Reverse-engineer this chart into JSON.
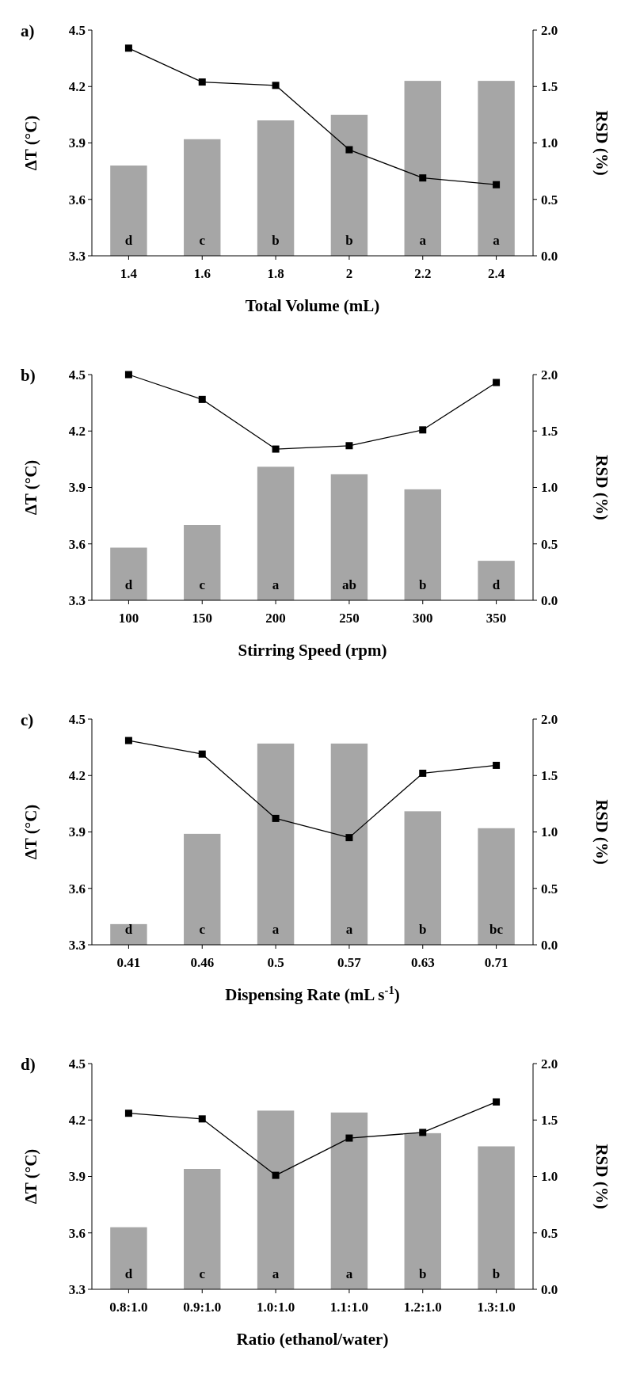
{
  "chart_data": [
    {
      "type": "bar",
      "title": "a)",
      "xlabel": "Total Volume (mL)",
      "ylabel": "ΔT (°C)",
      "y2label": "RSD (%)",
      "categories": [
        "1.4",
        "1.6",
        "1.8",
        "2",
        "2.2",
        "2.4"
      ],
      "y2ticks": [
        {
          "value": 0,
          "label": "0.0"
        },
        {
          "value": 0.5,
          "label": "0.5"
        },
        {
          "value": 1,
          "label": "1.0"
        },
        {
          "value": 1.5,
          "label": "1.5"
        },
        {
          "value": 2,
          "label": "2.0"
        }
      ],
      "series": [
        {
          "color": "#a6a6a6",
          "values": [
            3.78,
            3.92,
            4.02,
            4.05,
            4.23,
            4.23
          ]
        },
        {
          "type": "line",
          "axis": "y2",
          "color": "#000000",
          "marker": "square",
          "values": [
            1.84,
            1.54,
            1.51,
            0.94,
            0.69,
            0.63
          ]
        }
      ],
      "ylim": [
        3.3,
        4.5
      ],
      "yticks": [
        3.3,
        3.6,
        3.9,
        4.2,
        4.5
      ],
      "y2lim": [
        0,
        2
      ],
      "annotations": [
        "d",
        "c",
        "b",
        "b",
        "a",
        "a"
      ]
    },
    {
      "type": "bar",
      "title": "b)",
      "xlabel": "Stirring Speed (rpm)",
      "ylabel": "ΔT (°C)",
      "y2label": "RSD (%)",
      "categories": [
        "100",
        "150",
        "200",
        "250",
        "300",
        "350"
      ],
      "y2ticks": [
        {
          "value": 0,
          "label": "0.0"
        },
        {
          "value": 0.5,
          "label": "0.5"
        },
        {
          "value": 1,
          "label": "1.0"
        },
        {
          "value": 1.5,
          "label": "1.5"
        },
        {
          "value": 2,
          "label": "2.0"
        }
      ],
      "series": [
        {
          "color": "#a6a6a6",
          "values": [
            3.58,
            3.7,
            4.01,
            3.97,
            3.89,
            3.51
          ]
        },
        {
          "type": "line",
          "axis": "y2",
          "color": "#000000",
          "marker": "square",
          "values": [
            2.0,
            1.78,
            1.34,
            1.37,
            1.51,
            1.93
          ]
        }
      ],
      "ylim": [
        3.3,
        4.5
      ],
      "yticks": [
        3.3,
        3.6,
        3.9,
        4.2,
        4.5
      ],
      "y2lim": [
        0,
        2
      ],
      "annotations": [
        "d",
        "c",
        "a",
        "ab",
        "b",
        "d"
      ]
    },
    {
      "type": "bar",
      "title": "c)",
      "xlabel": "Dispensing Rate (mL s$^{-1}$)",
      "ylabel": "ΔT (°C)",
      "y2label": "RSD (%)",
      "categories": [
        "0.41",
        "0.46",
        "0.5",
        "0.57",
        "0.63",
        "0.71"
      ],
      "y2ticks": [
        {
          "value": 0,
          "label": "0.0"
        },
        {
          "value": 0.5,
          "label": "0.5"
        },
        {
          "value": 1,
          "label": "1.0"
        },
        {
          "value": 1.5,
          "label": "1.5"
        },
        {
          "value": 2,
          "label": "2.0"
        }
      ],
      "series": [
        {
          "color": "#a6a6a6",
          "values": [
            3.41,
            3.89,
            4.37,
            4.37,
            4.01,
            3.92
          ]
        },
        {
          "type": "line",
          "axis": "y2",
          "color": "#000000",
          "marker": "square",
          "values": [
            1.81,
            1.69,
            1.12,
            0.95,
            1.52,
            1.59
          ]
        }
      ],
      "ylim": [
        3.3,
        4.5
      ],
      "yticks": [
        3.3,
        3.6,
        3.9,
        4.2,
        4.5
      ],
      "y2lim": [
        0,
        2
      ],
      "annotations": [
        "d",
        "c",
        "a",
        "a",
        "b",
        "bc"
      ]
    },
    {
      "type": "bar",
      "title": "d)",
      "xlabel": "Ratio (ethanol/water)",
      "ylabel": "ΔT (°C)",
      "y2label": "RSD (%)",
      "categories": [
        "0.8:1.0",
        "0.9:1.0",
        "1.0:1.0",
        "1.1:1.0",
        "1.2:1.0",
        "1.3:1.0"
      ],
      "y2ticks": [
        {
          "value": 0,
          "label": "0.0"
        },
        {
          "value": 0.5,
          "label": "0.5"
        },
        {
          "value": 1,
          "label": "1.0"
        },
        {
          "value": 1.5,
          "label": "1.5"
        },
        {
          "value": 2,
          "label": "2.0"
        }
      ],
      "series": [
        {
          "color": "#a6a6a6",
          "values": [
            3.63,
            3.94,
            4.25,
            4.24,
            4.13,
            4.06
          ]
        },
        {
          "type": "line",
          "axis": "y2",
          "color": "#000000",
          "marker": "square",
          "values": [
            1.56,
            1.51,
            1.01,
            1.34,
            1.39,
            1.66
          ]
        }
      ],
      "ylim": [
        3.3,
        4.5
      ],
      "yticks": [
        3.3,
        3.6,
        3.9,
        4.2,
        4.5
      ],
      "y2lim": [
        0,
        2
      ],
      "annotations": [
        "d",
        "c",
        "a",
        "a",
        "b",
        "b"
      ]
    }
  ]
}
